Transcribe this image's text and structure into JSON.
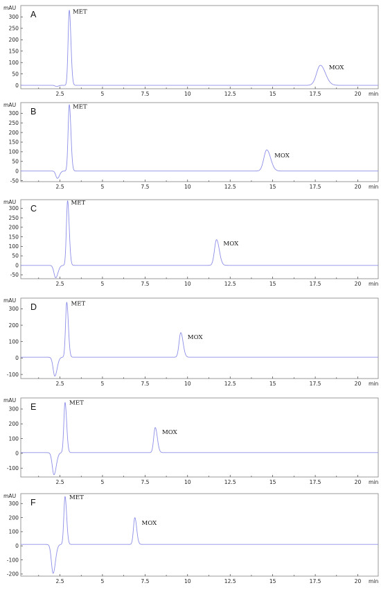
{
  "figure": {
    "y_unit_label": "mAU",
    "x_unit_label": "min",
    "trace_color": "#8c8ee8"
  },
  "chart_data": [
    {
      "type": "line",
      "panel_label": "A",
      "xlim": [
        0.2,
        21.2
      ],
      "ylim": [
        -15,
        350
      ],
      "x_ticks": [
        2.5,
        5,
        7.5,
        10,
        12.5,
        15,
        17.5,
        20
      ],
      "x_tick_labels": [
        "2.5",
        "5",
        "7.5",
        "10",
        "12.5",
        "15",
        "17.5",
        "20"
      ],
      "y_ticks": [
        0,
        50,
        100,
        150,
        200,
        250,
        300
      ],
      "y_tick_labels": [
        "0",
        "50",
        "100",
        "150",
        "200",
        "250",
        "300"
      ],
      "baseline": 0,
      "features": [
        {
          "type": "dip",
          "time": 2.3,
          "height": -5,
          "width": 0.08
        },
        {
          "type": "peak",
          "name": "MET",
          "time": 3.05,
          "height": 330,
          "width": 0.07
        },
        {
          "type": "peak",
          "name": "MOX",
          "time": 17.8,
          "height": 88,
          "width": 0.22
        }
      ],
      "annotations": [
        {
          "text": "MET",
          "x": 3.25,
          "y": 315
        },
        {
          "text": "MOX",
          "x": 18.3,
          "y": 70
        }
      ]
    },
    {
      "type": "line",
      "panel_label": "B",
      "xlim": [
        0.2,
        21.2
      ],
      "ylim": [
        -55,
        355
      ],
      "x_ticks": [
        2.5,
        5,
        7.5,
        10,
        12.5,
        15,
        17.5,
        20
      ],
      "x_tick_labels": [
        "2.5",
        "5",
        "7.5",
        "10",
        "12.5",
        "15",
        "17.5",
        "20"
      ],
      "y_ticks": [
        -50,
        0,
        50,
        100,
        150,
        200,
        250,
        300
      ],
      "y_tick_labels": [
        "-50",
        "0",
        "50",
        "100",
        "150",
        "200",
        "250",
        "300"
      ],
      "baseline": 0,
      "features": [
        {
          "type": "dip",
          "time": 2.35,
          "height": -38,
          "width": 0.09
        },
        {
          "type": "peak",
          "name": "MET",
          "time": 3.05,
          "height": 345,
          "width": 0.07
        },
        {
          "type": "peak",
          "name": "MOX",
          "time": 14.65,
          "height": 110,
          "width": 0.17
        }
      ],
      "annotations": [
        {
          "text": "MET",
          "x": 3.25,
          "y": 325
        },
        {
          "text": "MOX",
          "x": 15.1,
          "y": 70
        }
      ]
    },
    {
      "type": "line",
      "panel_label": "C",
      "xlim": [
        0.2,
        21.2
      ],
      "ylim": [
        -70,
        345
      ],
      "x_ticks": [
        2.5,
        5,
        7.5,
        10,
        12.5,
        15,
        17.5,
        20
      ],
      "x_tick_labels": [
        "2.5",
        "5",
        "7.5",
        "10",
        "12.5",
        "15",
        "17.5",
        "20"
      ],
      "y_ticks": [
        -50,
        0,
        50,
        100,
        150,
        200,
        250,
        300
      ],
      "y_tick_labels": [
        "-50",
        "0",
        "50",
        "100",
        "150",
        "200",
        "250",
        "300"
      ],
      "baseline": 0,
      "features": [
        {
          "type": "dip",
          "time": 2.25,
          "height": -65,
          "width": 0.1
        },
        {
          "type": "peak",
          "name": "MET",
          "time": 2.95,
          "height": 340,
          "width": 0.07
        },
        {
          "type": "peak",
          "name": "MOX",
          "time": 11.7,
          "height": 135,
          "width": 0.12
        }
      ],
      "annotations": [
        {
          "text": "MET",
          "x": 3.15,
          "y": 320
        },
        {
          "text": "MOX",
          "x": 12.1,
          "y": 105
        }
      ]
    },
    {
      "type": "line",
      "panel_label": "D",
      "xlim": [
        0.2,
        21.2
      ],
      "ylim": [
        -125,
        365
      ],
      "x_ticks": [
        2.5,
        5,
        7.5,
        10,
        12.5,
        15,
        17.5,
        20
      ],
      "x_tick_labels": [
        "2.5",
        "5",
        "7.5",
        "10",
        "12.5",
        "15",
        "17.5",
        "20"
      ],
      "y_ticks": [
        -100,
        0,
        100,
        200,
        300
      ],
      "y_tick_labels": [
        "-100",
        "0",
        "100",
        "200",
        "300"
      ],
      "baseline": 5,
      "features": [
        {
          "type": "dip",
          "time": 2.2,
          "height": -115,
          "width": 0.1
        },
        {
          "type": "peak",
          "name": "MET",
          "time": 2.9,
          "height": 335,
          "width": 0.07
        },
        {
          "type": "peak",
          "name": "MOX",
          "time": 9.6,
          "height": 150,
          "width": 0.1
        }
      ],
      "annotations": [
        {
          "text": "MET",
          "x": 3.15,
          "y": 320
        },
        {
          "text": "MOX",
          "x": 10.0,
          "y": 115
        }
      ]
    },
    {
      "type": "line",
      "panel_label": "E",
      "xlim": [
        0.2,
        21.2
      ],
      "ylim": [
        -160,
        375
      ],
      "x_ticks": [
        2.5,
        5,
        7.5,
        10,
        12.5,
        15,
        17.5,
        20
      ],
      "x_tick_labels": [
        "2.5",
        "5",
        "7.5",
        "10",
        "12.5",
        "15",
        "17.5",
        "20"
      ],
      "y_ticks": [
        -100,
        0,
        100,
        200,
        300
      ],
      "y_tick_labels": [
        "-100",
        "0",
        "100",
        "200",
        "300"
      ],
      "baseline": 5,
      "features": [
        {
          "type": "dip",
          "time": 2.15,
          "height": -150,
          "width": 0.1
        },
        {
          "type": "peak",
          "name": "MET",
          "time": 2.8,
          "height": 340,
          "width": 0.07
        },
        {
          "type": "peak",
          "name": "MOX",
          "time": 8.1,
          "height": 170,
          "width": 0.09
        }
      ],
      "annotations": [
        {
          "text": "MET",
          "x": 3.05,
          "y": 330
        },
        {
          "text": "MOX",
          "x": 8.5,
          "y": 130
        }
      ]
    },
    {
      "type": "line",
      "panel_label": "F",
      "xlim": [
        0.2,
        21.2
      ],
      "ylim": [
        -215,
        370
      ],
      "x_ticks": [
        2.5,
        5,
        7.5,
        10,
        12.5,
        15,
        17.5,
        20
      ],
      "x_tick_labels": [
        "2.5",
        "5",
        "7.5",
        "10",
        "12.5",
        "15",
        "17.5",
        "20"
      ],
      "y_ticks": [
        -200,
        -100,
        0,
        100,
        200,
        300
      ],
      "y_tick_labels": [
        "-200",
        "-100",
        "0",
        "100",
        "200",
        "300"
      ],
      "baseline": 10,
      "features": [
        {
          "type": "dip",
          "time": 2.1,
          "height": -205,
          "width": 0.1
        },
        {
          "type": "peak",
          "name": "MET",
          "time": 2.8,
          "height": 340,
          "width": 0.07
        },
        {
          "type": "peak",
          "name": "MOX",
          "time": 6.9,
          "height": 190,
          "width": 0.08
        }
      ],
      "annotations": [
        {
          "text": "MET",
          "x": 3.05,
          "y": 330
        },
        {
          "text": "MOX",
          "x": 7.3,
          "y": 150
        }
      ]
    }
  ]
}
